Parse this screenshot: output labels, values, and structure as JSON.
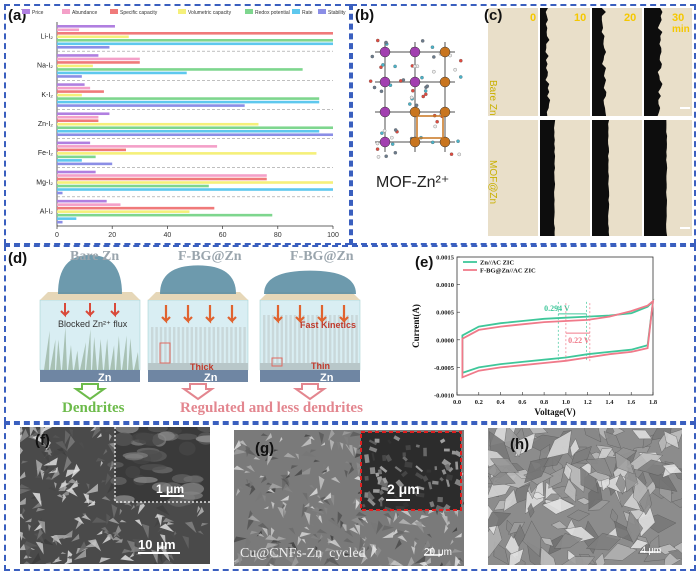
{
  "panel_labels": {
    "a": "(a)",
    "b": "(b)",
    "c": "(c)",
    "d": "(d)",
    "e": "(e)",
    "f": "(f)",
    "g": "(g)",
    "h": "(h)"
  },
  "colors": {
    "frame": "#3a5fbf"
  },
  "chart_data": [
    {
      "id": "a",
      "type": "bar",
      "orientation": "horizontal",
      "categories": [
        "Li-I₂",
        "Na-I₂",
        "K-I₂",
        "Zn-I₂",
        "Fe-I₂",
        "Mg-I₂",
        "Al-I₂"
      ],
      "series": [
        {
          "name": "Price",
          "color": "#b07fe0",
          "values": [
            21,
            15,
            10,
            19,
            12,
            14,
            18
          ]
        },
        {
          "name": "Abundance",
          "color": "#f4a0c8",
          "values": [
            8,
            30,
            12,
            15,
            58,
            76,
            23
          ]
        },
        {
          "name": "Specific capacity",
          "color": "#f07a7a",
          "values": [
            100,
            30,
            17,
            15,
            25,
            76,
            57
          ]
        },
        {
          "name": "Volumetric capacity",
          "color": "#f5f07a",
          "values": [
            26,
            13,
            9,
            73,
            94,
            100,
            48
          ]
        },
        {
          "name": "Redox potential",
          "color": "#7ed68e",
          "values": [
            100,
            89,
            95,
            100,
            14,
            55,
            78
          ]
        },
        {
          "name": "Rate",
          "color": "#5ec8ee",
          "values": [
            100,
            47,
            95,
            95,
            9,
            100,
            7
          ]
        },
        {
          "name": "Stability",
          "color": "#8b8ee6",
          "values": [
            19,
            9,
            68,
            100,
            20,
            2,
            2
          ]
        }
      ],
      "xlim": [
        0,
        100
      ],
      "xticks": [
        "0",
        "20",
        "40",
        "60",
        "80",
        "100"
      ]
    },
    {
      "id": "e",
      "type": "line",
      "xlabel": "Voltage(V)",
      "ylabel": "Current(A)",
      "xlim": [
        0,
        1.8
      ],
      "ylim": [
        -0.001,
        0.0015
      ],
      "xticks": [
        "0.0",
        "0.2",
        "0.4",
        "0.6",
        "0.8",
        "1.0",
        "1.2",
        "1.4",
        "1.6",
        "1.8"
      ],
      "yticks": [
        "0.0015",
        "0.0010",
        "0.0005",
        "0.0000",
        "-0.0005",
        "-0.0010"
      ],
      "series": [
        {
          "name": "Zn//AC ZIC",
          "color": "#3fc79a",
          "upper": [
            [
              0.05,
              8e-05
            ],
            [
              0.2,
              0.00024
            ],
            [
              0.4,
              0.0003
            ],
            [
              0.6,
              0.00034
            ],
            [
              0.8,
              0.00038
            ],
            [
              1.0,
              0.0004
            ],
            [
              1.2,
              0.00042
            ],
            [
              1.4,
              0.00044
            ],
            [
              1.6,
              0.00048
            ],
            [
              1.75,
              0.0006
            ],
            [
              1.8,
              0.0007
            ]
          ],
          "lower": [
            [
              1.8,
              0.0007
            ],
            [
              1.75,
              -0.0001
            ],
            [
              1.6,
              -0.00018
            ],
            [
              1.4,
              -0.00022
            ],
            [
              1.2,
              -0.00026
            ],
            [
              1.0,
              -0.00032
            ],
            [
              0.8,
              -0.00036
            ],
            [
              0.6,
              -0.0004
            ],
            [
              0.4,
              -0.00044
            ],
            [
              0.2,
              -0.0005
            ],
            [
              0.05,
              -0.0006
            ]
          ]
        },
        {
          "name": "F-BG@Zn//AC ZIC",
          "color": "#f07a8a",
          "upper": [
            [
              0.05,
              2e-05
            ],
            [
              0.2,
              0.00018
            ],
            [
              0.4,
              0.00024
            ],
            [
              0.6,
              0.00028
            ],
            [
              0.8,
              0.00032
            ],
            [
              1.0,
              0.00034
            ],
            [
              1.2,
              0.00036
            ],
            [
              1.4,
              0.00042
            ],
            [
              1.6,
              0.00052
            ],
            [
              1.75,
              0.00062
            ],
            [
              1.8,
              0.0007
            ]
          ],
          "lower": [
            [
              1.8,
              0.0007
            ],
            [
              1.75,
              -0.00015
            ],
            [
              1.6,
              -0.00022
            ],
            [
              1.4,
              -0.00026
            ],
            [
              1.2,
              -0.00032
            ],
            [
              1.0,
              -0.00038
            ],
            [
              0.8,
              -0.00042
            ],
            [
              0.6,
              -0.00046
            ],
            [
              0.4,
              -0.0005
            ],
            [
              0.2,
              -0.00056
            ],
            [
              0.05,
              -0.00068
            ]
          ]
        }
      ],
      "annotations": [
        "0.294 V",
        "0.22 V"
      ]
    }
  ],
  "b": {
    "caption": "MOF-Zn²⁺"
  },
  "c": {
    "times": [
      "0",
      "10",
      "20",
      "30"
    ],
    "unit": "min",
    "rows": [
      "Bare Zn",
      "MOF@Zn"
    ]
  },
  "d": {
    "titles": [
      "Bare Zn",
      "F-BG@Zn",
      "F-BG@Zn"
    ],
    "labels": {
      "blocked": "Blocked Zn²⁺ flux",
      "zn": "Zn",
      "thick": "Thick",
      "fast": "Fast Kinetics",
      "thin": "Thin"
    },
    "bottom": {
      "left": "Dendrites",
      "right": "Regulated and less dendrites"
    }
  },
  "f": {
    "inset_scale": "1 μm",
    "scale": "10 μm"
  },
  "g": {
    "inset_scale": "2 μm",
    "caption": "Cu@CNFs-Zn  cycled",
    "scale": "20 μm"
  },
  "h": {
    "scale": "4 μm"
  }
}
